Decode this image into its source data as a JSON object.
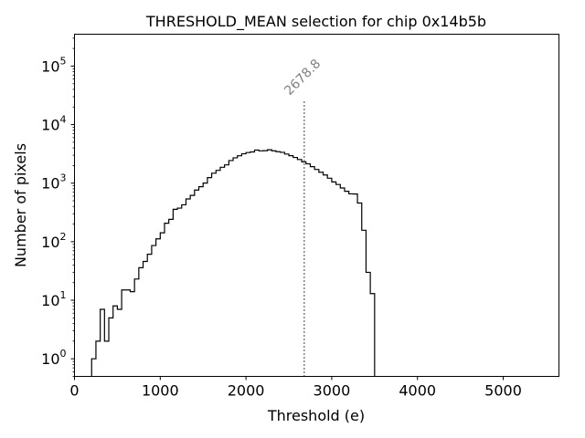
{
  "chart_data": {
    "type": "histogram",
    "title": "THRESHOLD_MEAN selection for chip 0x14b5b",
    "xlabel": "Threshold (e)",
    "ylabel": "Number of pixels",
    "xlim": [
      0,
      5650
    ],
    "ylim_log": [
      0.5,
      350000
    ],
    "yscale": "log",
    "x_ticks": [
      0,
      1000,
      2000,
      3000,
      4000,
      5000
    ],
    "y_ticks": [
      {
        "value": 1,
        "base": "10",
        "exp": "0"
      },
      {
        "value": 10,
        "base": "10",
        "exp": "1"
      },
      {
        "value": 100,
        "base": "10",
        "exp": "2"
      },
      {
        "value": 1000,
        "base": "10",
        "exp": "3"
      },
      {
        "value": 10000,
        "base": "10",
        "exp": "4"
      },
      {
        "value": 100000,
        "base": "10",
        "exp": "5"
      }
    ],
    "bin_width": 50,
    "bin_start": 200,
    "counts": [
      1,
      2,
      7,
      2,
      5,
      8,
      7,
      15,
      15,
      14,
      23,
      36,
      46,
      61,
      86,
      112,
      142,
      207,
      241,
      358,
      375,
      427,
      538,
      618,
      764,
      869,
      1003,
      1246,
      1479,
      1653,
      1867,
      2053,
      2434,
      2709,
      2936,
      3170,
      3334,
      3414,
      3676,
      3561,
      3584,
      3718,
      3569,
      3446,
      3364,
      3141,
      2941,
      2746,
      2532,
      2314,
      2137,
      1916,
      1714,
      1537,
      1379,
      1214,
      1049,
      948,
      828,
      726,
      657,
      652,
      458,
      157,
      30,
      13
    ],
    "color": "#000000",
    "marker_line": {
      "x": 2678.8,
      "label": "2678.8",
      "color": "#808080",
      "y_top": 25000
    }
  }
}
